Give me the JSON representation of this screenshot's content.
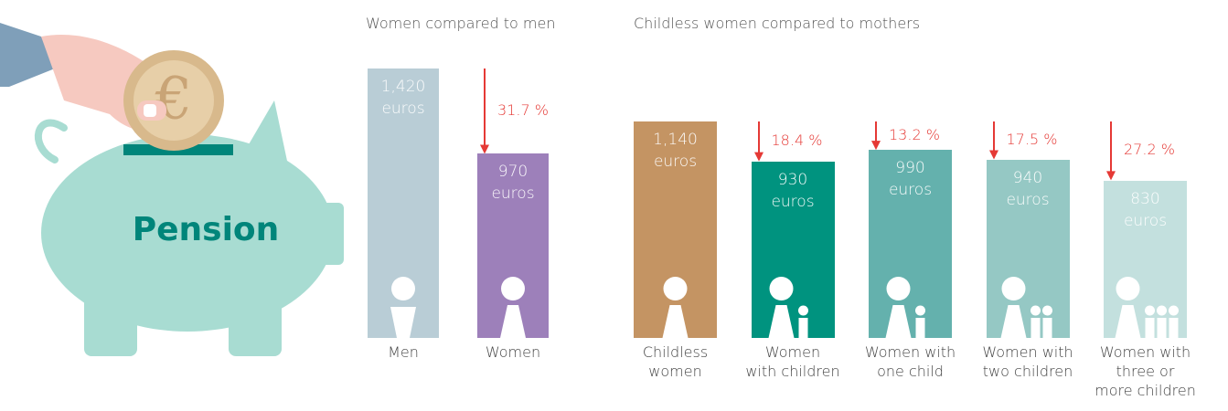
{
  "illustration_label": "Pension",
  "chart_data": [
    {
      "type": "bar",
      "title": "Women compared to men",
      "categories": [
        "Men",
        "Women"
      ],
      "values": [
        1420,
        970
      ],
      "value_labels": [
        "1,420",
        "970"
      ],
      "unit": "euros",
      "changes": [
        null,
        "31.7 %"
      ],
      "colors": [
        "#b9cdd6",
        "#9d80ba"
      ]
    },
    {
      "type": "bar",
      "title": "Childless women compared to mothers",
      "categories": [
        "Childless\nwomen",
        "Women\nwith children",
        "Women with\none child",
        "Women with\ntwo children",
        "Women with\nthree or\nmore children"
      ],
      "values": [
        1140,
        930,
        990,
        940,
        830
      ],
      "value_labels": [
        "1,140",
        "930",
        "990",
        "940",
        "830"
      ],
      "unit": "euros",
      "changes": [
        null,
        "18.4 %",
        "13.2 %",
        "17.5 %",
        "27.2 %"
      ],
      "colors": [
        "#c49463",
        "#00937f",
        "#64b1ad",
        "#95c8c4",
        "#c3e0de"
      ]
    }
  ]
}
